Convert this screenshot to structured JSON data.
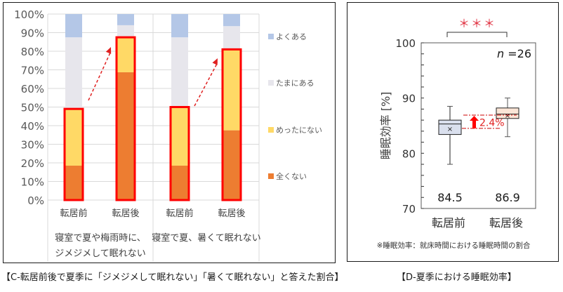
{
  "panel_c": {
    "caption": "【C-転居前後で夏季に「ジメジメして眠れない」「暑くて眠れない」と答えた割合】"
  },
  "panel_d": {
    "caption": "【D-夏季における睡眠効率】",
    "footnote": "※睡眠効率：就床時間における睡眠時間の割合",
    "n_label": "n",
    "n_value": "=26",
    "significance": "＊＊＊",
    "diff_label": "2.4%"
  },
  "chart_data": [
    {
      "type": "bar",
      "stacked": true,
      "title": "",
      "xlabel": "",
      "ylabel": "",
      "ylim": [
        0,
        100
      ],
      "yticks": [
        "0%",
        "10%",
        "20%",
        "30%",
        "40%",
        "50%",
        "60%",
        "70%",
        "80%",
        "90%",
        "100%"
      ],
      "grid": true,
      "legend_position": "right",
      "groups": [
        {
          "label_lines": [
            "寝室で夏や梅雨時に、",
            "ジメジメして眠れない"
          ],
          "categories": [
            "転居前",
            "転居後"
          ]
        },
        {
          "label_lines": [
            "寝室で夏、暑くて眠れない"
          ],
          "categories": [
            "転居前",
            "転居後"
          ]
        }
      ],
      "categories": [
        "転居前",
        "転居後",
        "転居前",
        "転居後"
      ],
      "series": [
        {
          "name": "全くない",
          "color": "#ED7D31",
          "values": [
            18.5,
            68.7,
            18.5,
            37.5
          ]
        },
        {
          "name": "めったにない",
          "color": "#FFD966",
          "values": [
            30.5,
            18.8,
            31.5,
            43.5
          ]
        },
        {
          "name": "たまにある",
          "color": "#E7E6EC",
          "values": [
            38.5,
            6.5,
            37.5,
            12.5
          ]
        },
        {
          "name": "よくある",
          "color": "#B4C7E7",
          "values": [
            12.5,
            6.0,
            12.5,
            6.5
          ]
        }
      ],
      "legend": [
        "よくある",
        "たまにある",
        "めったにない",
        "全くない"
      ],
      "annotations": [
        {
          "type": "highlight-box",
          "target": "全くない+めったにない",
          "color": "#FF0000"
        },
        {
          "type": "dashed-arrow",
          "from": "転居前",
          "to": "転居後",
          "group": 1,
          "color": "#FF0000"
        },
        {
          "type": "dashed-arrow",
          "from": "転居前",
          "to": "転居後",
          "group": 2,
          "color": "#FF0000"
        }
      ]
    },
    {
      "type": "box",
      "title": "",
      "xlabel": "",
      "ylabel": "睡眠効率 [%]",
      "ylim": [
        70,
        100
      ],
      "yticks": [
        70,
        80,
        90,
        100
      ],
      "categories": [
        "転居前",
        "転居後"
      ],
      "boxes": [
        {
          "label": "転居前",
          "min": 78.0,
          "q1": 83.4,
          "median": 85.3,
          "q3": 86.0,
          "max": 88.5,
          "mean": 84.5,
          "fill": "#DAE0EE"
        },
        {
          "label": "転居後",
          "min": 83.0,
          "q1": 86.3,
          "median": 87.1,
          "q3": 88.2,
          "max": 90.0,
          "mean": 86.9,
          "fill": "#FBE5D6"
        }
      ],
      "mean_labels": [
        "84.5",
        "86.9"
      ],
      "annotations": [
        {
          "type": "significance",
          "text": "＊＊＊",
          "between": [
            "転居前",
            "転居後"
          ]
        },
        {
          "type": "text",
          "text": "n =26"
        },
        {
          "type": "difference-arrow",
          "text": "2.4%",
          "from": 84.5,
          "to": 86.9,
          "color": "#FF0000"
        }
      ]
    }
  ]
}
